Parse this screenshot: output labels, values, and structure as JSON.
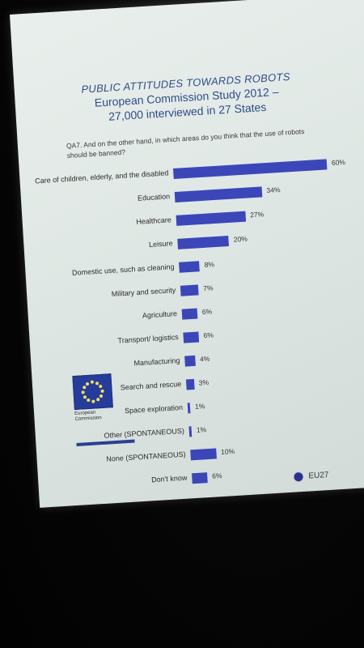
{
  "slide": {
    "title_line1": "PUBLIC ATTITUDES TOWARDS ROBOTS",
    "title_line2": "European Commission Study 2012 –",
    "title_line3": "27,000 interviewed in 27 States",
    "question": "QA7. And on the other hand, in which areas do you think that the use of robots should be banned?",
    "logo_text_line1": "European",
    "logo_text_line2": "Commission"
  },
  "chart_data": {
    "type": "bar",
    "orientation": "horizontal",
    "categories": [
      "Care of children, elderly, and the disabled",
      "Education",
      "Healthcare",
      "Leisure",
      "Domestic use, such as cleaning",
      "Military and security",
      "Agriculture",
      "Transport/ logistics",
      "Manufacturing",
      "Search and rescue",
      "Space exploration",
      "Other (SPONTANEOUS)",
      "None (SPONTANEOUS)",
      "Don't know"
    ],
    "values": [
      60,
      34,
      27,
      20,
      8,
      7,
      6,
      6,
      4,
      3,
      1,
      1,
      10,
      6
    ],
    "value_labels": [
      "60%",
      "34%",
      "27%",
      "20%",
      "8%",
      "7%",
      "6%",
      "6%",
      "4%",
      "3%",
      "1%",
      "1%",
      "10%",
      "6%"
    ],
    "series": [
      {
        "name": "EU27",
        "color": "#3b47b8"
      }
    ],
    "xlim": [
      0,
      60
    ],
    "legend": "bottom-right",
    "grid": false
  }
}
